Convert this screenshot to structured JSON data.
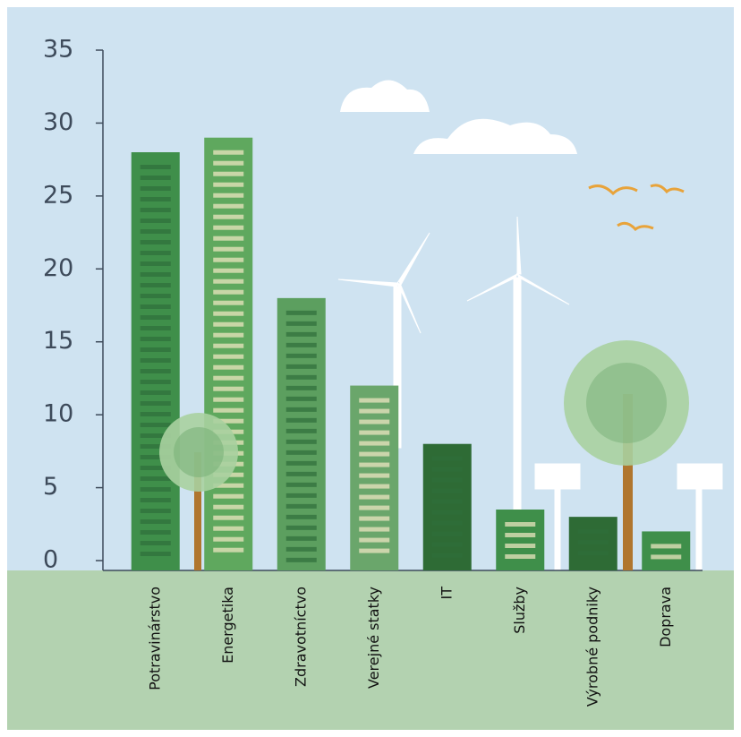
{
  "chart_data": {
    "type": "bar",
    "categories": [
      "Potravinárstvo",
      "Energetika",
      "Zdravotníctvo",
      "Verejné statky",
      "IT",
      "Služby",
      "Výrobné podniky",
      "Doprava"
    ],
    "values": [
      28,
      29,
      18,
      12,
      8,
      3.5,
      3,
      2
    ],
    "colors": [
      "#3f8f4a",
      "#5fa85e",
      "#5c9f5f",
      "#6aa66b",
      "#2e6b35",
      "#3f8f4a",
      "#2e6b35",
      "#3f8f4a"
    ],
    "ylim": [
      0,
      35
    ],
    "yticks": [
      0,
      5,
      10,
      15,
      20,
      25,
      30,
      35
    ]
  }
}
